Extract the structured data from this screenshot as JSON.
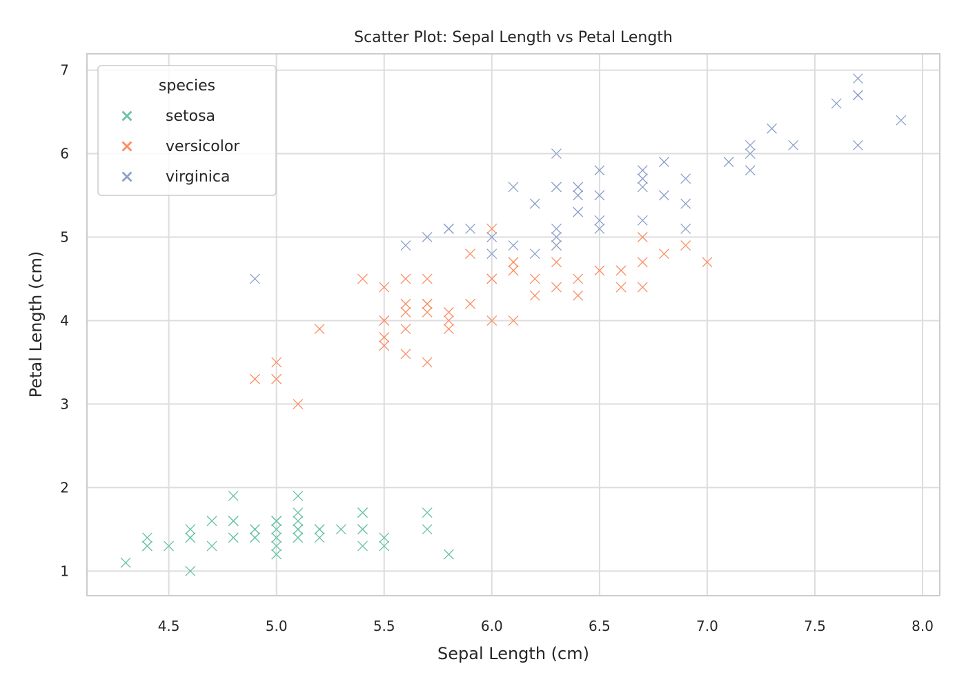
{
  "chart_data": {
    "type": "scatter",
    "title": "Scatter Plot: Sepal Length vs Petal Length",
    "xlabel": "Sepal Length (cm)",
    "ylabel": "Petal Length (cm)",
    "xlim": [
      4.12,
      8.08
    ],
    "ylim": [
      0.705,
      7.195
    ],
    "xticks": [
      4.5,
      5.0,
      5.5,
      6.0,
      6.5,
      7.0,
      7.5,
      8.0
    ],
    "xtick_labels": [
      "4.5",
      "5.0",
      "5.5",
      "6.0",
      "6.5",
      "7.0",
      "7.5",
      "8.0"
    ],
    "yticks": [
      1,
      2,
      3,
      4,
      5,
      6,
      7
    ],
    "ytick_labels": [
      "1",
      "2",
      "3",
      "4",
      "5",
      "6",
      "7"
    ],
    "grid": true,
    "marker": "x",
    "legend": {
      "title": "species",
      "placement": "upper-left"
    },
    "series": [
      {
        "name": "setosa",
        "color": "#66c2a5",
        "x": [
          5.1,
          4.9,
          4.7,
          4.6,
          5.0,
          5.4,
          4.6,
          5.0,
          4.4,
          4.9,
          5.4,
          4.8,
          4.8,
          4.3,
          5.8,
          5.7,
          5.4,
          5.1,
          5.7,
          5.1,
          5.4,
          5.1,
          4.6,
          5.1,
          4.8,
          5.0,
          5.0,
          5.2,
          5.2,
          4.7,
          4.8,
          5.4,
          5.2,
          5.5,
          4.9,
          5.0,
          5.5,
          4.9,
          4.4,
          5.1,
          5.0,
          4.5,
          4.4,
          5.0,
          5.1,
          4.8,
          5.1,
          4.6,
          5.3,
          5.0
        ],
        "y": [
          1.4,
          1.4,
          1.3,
          1.5,
          1.4,
          1.7,
          1.4,
          1.5,
          1.4,
          1.5,
          1.5,
          1.6,
          1.4,
          1.1,
          1.2,
          1.5,
          1.3,
          1.4,
          1.7,
          1.5,
          1.7,
          1.5,
          1.0,
          1.7,
          1.9,
          1.6,
          1.6,
          1.5,
          1.4,
          1.6,
          1.6,
          1.5,
          1.5,
          1.4,
          1.5,
          1.2,
          1.3,
          1.4,
          1.3,
          1.5,
          1.3,
          1.3,
          1.3,
          1.6,
          1.9,
          1.4,
          1.6,
          1.4,
          1.5,
          1.4
        ]
      },
      {
        "name": "versicolor",
        "color": "#fc8d62",
        "x": [
          7.0,
          6.4,
          6.9,
          5.5,
          6.5,
          5.7,
          6.3,
          4.9,
          6.6,
          5.2,
          5.0,
          5.9,
          6.0,
          6.1,
          5.6,
          6.7,
          5.6,
          5.8,
          6.2,
          5.6,
          5.9,
          6.1,
          6.3,
          6.1,
          6.4,
          6.6,
          6.8,
          6.7,
          6.0,
          5.7,
          5.5,
          5.5,
          5.8,
          6.0,
          5.4,
          6.0,
          6.7,
          6.3,
          5.6,
          5.5,
          5.5,
          6.1,
          5.8,
          5.0,
          5.6,
          5.7,
          5.7,
          6.2,
          5.1,
          5.7
        ],
        "y": [
          4.7,
          4.5,
          4.9,
          4.0,
          4.6,
          4.5,
          4.7,
          3.3,
          4.6,
          3.9,
          3.5,
          4.2,
          4.0,
          4.7,
          3.6,
          4.4,
          4.5,
          4.1,
          4.5,
          3.9,
          4.8,
          4.0,
          4.9,
          4.7,
          4.3,
          4.4,
          4.8,
          5.0,
          4.5,
          3.5,
          3.8,
          3.7,
          3.9,
          5.1,
          4.5,
          4.5,
          4.7,
          4.4,
          4.1,
          4.0,
          4.4,
          4.6,
          4.0,
          3.3,
          4.2,
          4.2,
          4.2,
          4.3,
          3.0,
          4.1
        ]
      },
      {
        "name": "virginica",
        "color": "#8da0cb",
        "x": [
          6.3,
          5.8,
          7.1,
          6.3,
          6.5,
          7.6,
          4.9,
          7.3,
          6.7,
          7.2,
          6.5,
          6.4,
          6.8,
          5.7,
          5.8,
          6.4,
          6.5,
          7.7,
          7.7,
          6.0,
          6.9,
          5.6,
          7.7,
          6.3,
          6.7,
          7.2,
          6.2,
          6.1,
          6.4,
          7.2,
          7.4,
          7.9,
          6.4,
          6.3,
          6.1,
          7.7,
          6.3,
          6.4,
          6.0,
          6.9,
          6.7,
          6.9,
          5.8,
          6.8,
          6.7,
          6.7,
          6.3,
          6.5,
          6.2,
          5.9
        ],
        "y": [
          6.0,
          5.1,
          5.9,
          5.6,
          5.8,
          6.6,
          4.5,
          6.3,
          5.8,
          6.1,
          5.1,
          5.3,
          5.5,
          5.0,
          5.1,
          5.3,
          5.5,
          6.7,
          6.9,
          5.0,
          5.7,
          4.9,
          6.7,
          4.9,
          5.7,
          6.0,
          4.8,
          4.9,
          5.6,
          5.8,
          6.1,
          6.4,
          5.6,
          5.1,
          5.6,
          6.1,
          5.6,
          5.5,
          4.8,
          5.4,
          5.6,
          5.1,
          5.1,
          5.9,
          5.7,
          5.2,
          5.0,
          5.2,
          5.4,
          5.1
        ]
      }
    ]
  }
}
